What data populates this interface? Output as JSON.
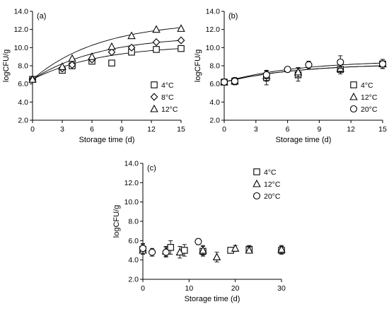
{
  "chart_data": [
    {
      "type": "scatter",
      "panel_label": "(a)",
      "xlabel": "Storage time (d)",
      "ylabel": "logCFU/g",
      "xlim": [
        0,
        15
      ],
      "ylim": [
        2.0,
        14.0
      ],
      "xticks": [
        "0",
        "3",
        "6",
        "9",
        "12",
        "15"
      ],
      "yticks": [
        "2.0",
        "4.0",
        "6.0",
        "8.0",
        "10.0",
        "12.0",
        "14.0"
      ],
      "legend_position": "bottom-right",
      "fitted_curves": true,
      "series": [
        {
          "name": "4°C",
          "marker": "square",
          "x": [
            0,
            3,
            4,
            6,
            8,
            10,
            12.5,
            15
          ],
          "y": [
            6.5,
            7.5,
            8.0,
            8.5,
            8.3,
            9.5,
            9.8,
            9.9
          ],
          "fit": [
            6.5,
            9.9
          ]
        },
        {
          "name": "8°C",
          "marker": "diamond",
          "x": [
            0,
            3,
            4,
            6,
            8,
            10,
            12.5,
            15
          ],
          "y": [
            6.5,
            7.7,
            8.1,
            8.7,
            9.5,
            10.0,
            10.6,
            10.8
          ],
          "fit": [
            6.5,
            10.8
          ]
        },
        {
          "name": "12°C",
          "marker": "triangle",
          "x": [
            0,
            3,
            4,
            6,
            8,
            10,
            12.5,
            15
          ],
          "y": [
            6.5,
            7.9,
            8.8,
            9.0,
            10.1,
            11.3,
            12.0,
            12.1
          ],
          "fit": [
            6.5,
            12.2
          ]
        }
      ]
    },
    {
      "type": "scatter",
      "panel_label": "(b)",
      "xlabel": "Storage time (d)",
      "ylabel": "logCFU/g",
      "xlim": [
        0,
        15
      ],
      "ylim": [
        2.0,
        14.0
      ],
      "xticks": [
        "0",
        "3",
        "6",
        "9",
        "12",
        "15"
      ],
      "yticks": [
        "2.0",
        "4.0",
        "6.0",
        "8.0",
        "10.0",
        "12.0",
        "14.0"
      ],
      "legend_position": "bottom-right",
      "fitted_curves": true,
      "error_bars": true,
      "series": [
        {
          "name": "4°C",
          "marker": "square",
          "x": [
            0,
            1,
            4,
            7,
            11,
            15
          ],
          "y": [
            6.2,
            6.3,
            6.7,
            7.0,
            7.6,
            8.2
          ],
          "err": [
            0.3,
            0.4,
            0.8,
            0.7,
            0.5,
            0.5
          ],
          "fit": [
            6.2,
            8.0
          ]
        },
        {
          "name": "12°C",
          "marker": "triangle",
          "x": [
            0,
            1,
            4,
            7,
            11,
            15
          ],
          "y": [
            6.2,
            6.3,
            6.9,
            7.3,
            7.7,
            8.2
          ],
          "err": [
            0.3,
            0.3,
            0.6,
            0.5,
            0.4,
            0.5
          ],
          "fit": [
            6.2,
            8.0
          ]
        },
        {
          "name": "20°C",
          "marker": "circle",
          "x": [
            0,
            1,
            4,
            6,
            8,
            11,
            15
          ],
          "y": [
            6.2,
            6.3,
            7.0,
            7.6,
            8.1,
            8.4,
            8.2
          ],
          "err": [
            0.3,
            0.3,
            0.4,
            0.3,
            0.4,
            0.7,
            0.5
          ],
          "fit": [
            6.2,
            8.3
          ]
        }
      ]
    },
    {
      "type": "scatter",
      "panel_label": "(c)",
      "xlabel": "Storage time (d)",
      "ylabel": "logCFU/g",
      "xlim": [
        0,
        30
      ],
      "ylim": [
        2.0,
        14.0
      ],
      "xticks": [
        "0",
        "10",
        "20",
        "30"
      ],
      "yticks": [
        "2.0",
        "4.0",
        "6.0",
        "8.0",
        "10.0",
        "12.0",
        "14.0"
      ],
      "legend_position": "top-right",
      "fitted_curves": false,
      "error_bars": true,
      "series": [
        {
          "name": "4°C",
          "marker": "square",
          "x": [
            0,
            6,
            9,
            13,
            19,
            23,
            30
          ],
          "y": [
            5.1,
            5.3,
            5.0,
            4.9,
            5.0,
            5.1,
            5.0
          ],
          "err": [
            0.5,
            0.7,
            0.6,
            0.5,
            0.3,
            0.4,
            0.4
          ]
        },
        {
          "name": "12°C",
          "marker": "triangle",
          "x": [
            0,
            5,
            8,
            13,
            16,
            20,
            23,
            30
          ],
          "y": [
            5.0,
            4.9,
            4.8,
            5.0,
            4.3,
            5.2,
            5.0,
            5.1
          ],
          "err": [
            0.4,
            0.5,
            0.6,
            0.5,
            0.5,
            0.3,
            0.3,
            0.4
          ]
        },
        {
          "name": "20°C",
          "marker": "circle",
          "x": [
            0,
            2,
            5,
            12
          ],
          "y": [
            5.2,
            4.8,
            4.8,
            5.9
          ],
          "err": [
            0.5,
            0.4,
            0.5,
            0.3
          ]
        }
      ]
    }
  ]
}
